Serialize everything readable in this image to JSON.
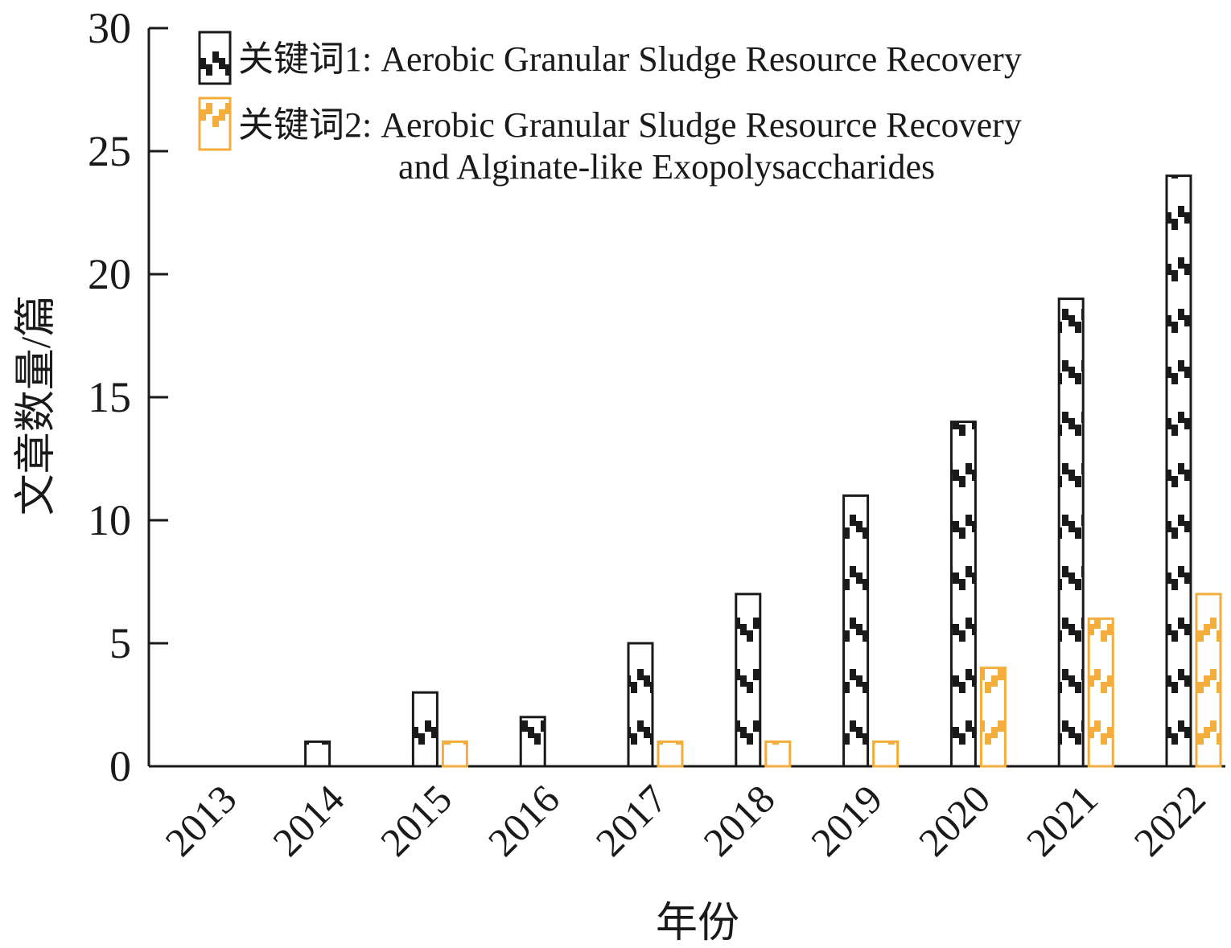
{
  "chart_data": {
    "type": "bar",
    "categories": [
      "2013",
      "2014",
      "2015",
      "2016",
      "2017",
      "2018",
      "2019",
      "2020",
      "2021",
      "2022"
    ],
    "series": [
      {
        "name": "关键词1: Aerobic Granular Sludge Resource Recovery",
        "values": [
          0,
          1,
          3,
          2,
          5,
          7,
          11,
          14,
          19,
          24
        ],
        "color": "#1a1a1a"
      },
      {
        "name": "关键词2: Aerobic Granular Sludge Resource Recovery and Alginate-like Exopolysaccharides",
        "values": [
          0,
          0,
          1,
          0,
          1,
          1,
          1,
          4,
          6,
          7
        ],
        "color": "#f2ad3c"
      }
    ],
    "legend": {
      "entries": [
        {
          "lines": [
            "关键词1: Aerobic Granular Sludge Resource Recovery"
          ]
        },
        {
          "lines": [
            "关键词2: Aerobic Granular Sludge Resource Recovery",
            "and Alginate-like Exopolysaccharides"
          ]
        }
      ],
      "placement": "top-left"
    },
    "xlabel": "年份",
    "ylabel": "文章数量/篇",
    "ylim": [
      0,
      30
    ],
    "yticks": [
      0,
      5,
      10,
      15,
      20,
      25,
      30
    ],
    "grid": false
  }
}
